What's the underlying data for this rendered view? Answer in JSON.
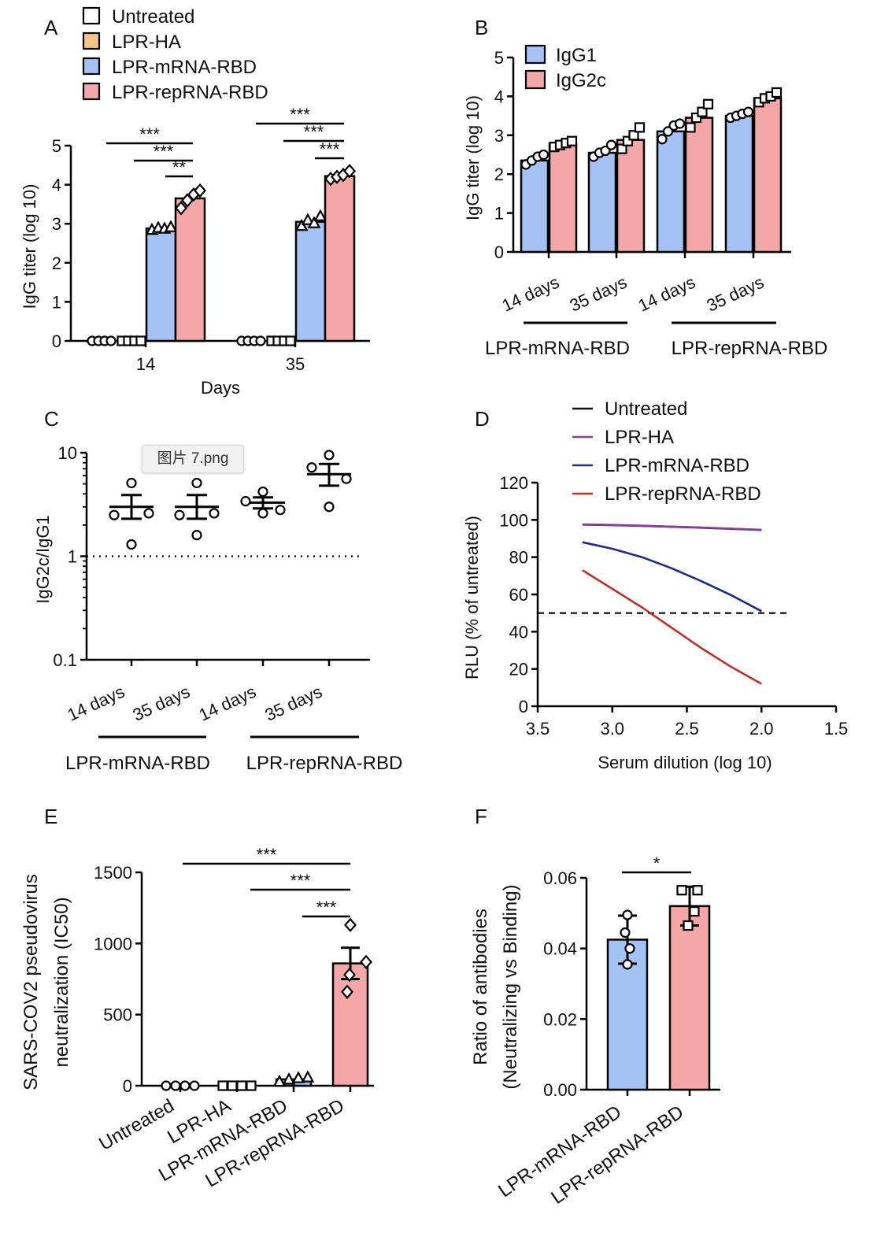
{
  "tooltip": {
    "text": "图片 7.png"
  },
  "chart_data": [
    {
      "panel": "A",
      "type": "bar",
      "ylabel": "IgG titer (log 10)",
      "xlabel": "Days",
      "ylim": [
        0,
        5
      ],
      "yticks": [
        "0",
        "1",
        "2",
        "3",
        "4",
        "5"
      ],
      "categories": [
        "14",
        "35"
      ],
      "legend": [
        {
          "name": "Untreated",
          "color": "#ffffff"
        },
        {
          "name": "LPR-HA",
          "color": "#f5c48a"
        },
        {
          "name": "LPR-mRNA-RBD",
          "color": "#a4c2f4"
        },
        {
          "name": "LPR-repRNA-RBD",
          "color": "#f4a7a7"
        }
      ],
      "series": [
        {
          "name": "Untreated",
          "values": [
            0,
            0
          ],
          "points": [
            [
              0,
              0,
              0,
              0
            ],
            [
              0,
              0,
              0,
              0
            ]
          ]
        },
        {
          "name": "LPR-HA",
          "values": [
            0,
            0
          ],
          "points": [
            [
              0,
              0,
              0,
              0
            ],
            [
              0,
              0,
              0,
              0
            ]
          ]
        },
        {
          "name": "LPR-mRNA-RBD",
          "values": [
            2.88,
            3.05
          ],
          "points": [
            [
              2.85,
              2.9,
              2.88,
              2.92
            ],
            [
              2.95,
              3.1,
              3.02,
              3.2
            ]
          ]
        },
        {
          "name": "LPR-repRNA-RBD",
          "values": [
            3.65,
            4.22
          ],
          "points": [
            [
              3.4,
              3.6,
              3.75,
              3.85
            ],
            [
              4.15,
              4.2,
              4.25,
              4.35
            ]
          ]
        }
      ],
      "significance": [
        {
          "label": "***"
        },
        {
          "label": "***"
        },
        {
          "label": "**"
        },
        {
          "label": "***"
        },
        {
          "label": "***"
        },
        {
          "label": "***"
        }
      ]
    },
    {
      "panel": "B",
      "type": "bar",
      "ylabel": "IgG titer (log 10)",
      "ylim": [
        0,
        5
      ],
      "yticks": [
        "0",
        "1",
        "2",
        "3",
        "4",
        "5"
      ],
      "categories": [
        "14 days",
        "35 days",
        "14 days",
        "35 days"
      ],
      "groups": [
        "LPR-mRNA-RBD",
        "LPR-repRNA-RBD"
      ],
      "series": [
        {
          "name": "IgG1",
          "color": "#a4c2f4",
          "values": [
            2.35,
            2.55,
            3.1,
            3.5
          ],
          "points": [
            [
              2.25,
              2.35,
              2.45,
              2.5
            ],
            [
              2.45,
              2.55,
              2.6,
              2.75
            ],
            [
              2.9,
              3.1,
              3.25,
              3.3
            ],
            [
              3.45,
              3.5,
              3.55,
              3.6
            ]
          ]
        },
        {
          "name": "IgG2c",
          "color": "#f4a7a7",
          "values": [
            2.78,
            2.88,
            3.45,
            3.95
          ],
          "points": [
            [
              2.7,
              2.75,
              2.8,
              2.85
            ],
            [
              2.65,
              2.85,
              3.0,
              3.2
            ],
            [
              3.2,
              3.45,
              3.6,
              3.8
            ],
            [
              3.85,
              3.95,
              4.0,
              4.1
            ]
          ]
        }
      ]
    },
    {
      "panel": "C",
      "type": "scatter",
      "ylabel": "IgG2c/IgG1",
      "yscale": "log",
      "ylim": [
        0.1,
        10
      ],
      "yticks": [
        "0.1",
        "1",
        "10"
      ],
      "reference_line": 1,
      "categories": [
        "14 days",
        "35 days",
        "14 days",
        "35 days"
      ],
      "groups": [
        "LPR-mRNA-RBD",
        "LPR-repRNA-RBD"
      ],
      "points": [
        [
          5.1,
          2.5,
          2.6,
          1.3
        ],
        [
          5.1,
          2.5,
          2.6,
          1.6
        ],
        [
          4.2,
          3.4,
          2.8,
          2.6
        ],
        [
          9.5,
          7.2,
          5.6,
          3.0
        ]
      ],
      "means": [
        3.0,
        3.0,
        3.3,
        6.2
      ],
      "sem": [
        [
          2.3,
          3.9
        ],
        [
          2.3,
          3.9
        ],
        [
          2.9,
          3.7
        ],
        [
          4.8,
          7.8
        ]
      ]
    },
    {
      "panel": "D",
      "type": "line",
      "xlabel": "Serum dilution (log 10)",
      "ylabel": "RLU (% of untreated)",
      "xlim": [
        3.5,
        1.5
      ],
      "ylim": [
        0,
        120
      ],
      "xticks": [
        "3.5",
        "3.0",
        "2.5",
        "2.0",
        "1.5"
      ],
      "yticks": [
        "0",
        "20",
        "40",
        "60",
        "80",
        "100",
        "120"
      ],
      "reference_line": 50,
      "series": [
        {
          "name": "Untreated",
          "color": "#111111",
          "x": [
            3.2,
            3.0,
            2.8,
            2.6,
            2.4,
            2.2,
            2.0
          ],
          "y": [
            97.5,
            97.2,
            96.8,
            96.3,
            95.8,
            95.2,
            94.6
          ]
        },
        {
          "name": "LPR-HA",
          "color": "#8a3c9e",
          "x": [
            3.2,
            3.0,
            2.8,
            2.6,
            2.4,
            2.2,
            2.0
          ],
          "y": [
            97.6,
            97.3,
            96.9,
            96.4,
            95.9,
            95.3,
            94.7
          ]
        },
        {
          "name": "LPR-mRNA-RBD",
          "color": "#1c2a8f",
          "x": [
            3.2,
            3.0,
            2.8,
            2.6,
            2.4,
            2.2,
            2.0
          ],
          "y": [
            88,
            84.5,
            80,
            74,
            67,
            59.5,
            51
          ]
        },
        {
          "name": "LPR-repRNA-RBD",
          "color": "#c0302b",
          "x": [
            3.2,
            3.0,
            2.8,
            2.6,
            2.4,
            2.2,
            2.0
          ],
          "y": [
            73,
            63,
            53,
            42,
            31,
            21,
            12
          ]
        }
      ]
    },
    {
      "panel": "E",
      "type": "bar",
      "ylabel": "SARS-COV2 pseudovirus neutralization (IC50)",
      "ylim": [
        0,
        1500
      ],
      "yticks": [
        "0",
        "500",
        "1000",
        "1500"
      ],
      "categories": [
        "Untreated",
        "LPR-HA",
        "LPR-mRNA-RBD",
        "LPR-repRNA-RBD"
      ],
      "colors": [
        "#ffffff",
        "#f5c48a",
        "#a4c2f4",
        "#f4a7a7"
      ],
      "values": [
        0,
        0,
        45,
        860
      ],
      "sem": [
        0,
        0,
        10,
        110
      ],
      "points": [
        [
          0,
          0,
          0,
          0
        ],
        [
          0,
          0,
          0,
          0
        ],
        [
          30,
          45,
          55,
          60
        ],
        [
          1130,
          870,
          660,
          780
        ]
      ],
      "significance": [
        {
          "label": "***"
        },
        {
          "label": "***"
        },
        {
          "label": "***"
        }
      ]
    },
    {
      "panel": "F",
      "type": "bar",
      "ylabel": "Ratio of antibodies (Neutralizing vs Binding)",
      "ylim": [
        0,
        0.06
      ],
      "yticks": [
        "0.00",
        "0.02",
        "0.04",
        "0.06"
      ],
      "categories": [
        "LPR-mRNA-RBD",
        "LPR-repRNA-RBD"
      ],
      "colors": [
        "#a4c2f4",
        "#f4a7a7"
      ],
      "values": [
        0.0425,
        0.052
      ],
      "sd": [
        0.0068,
        0.0055
      ],
      "points": [
        [
          0.0495,
          0.0445,
          0.04,
          0.0355
        ],
        [
          0.0565,
          0.0565,
          0.0505,
          0.0465
        ]
      ],
      "significance": [
        {
          "label": "*"
        }
      ]
    }
  ]
}
